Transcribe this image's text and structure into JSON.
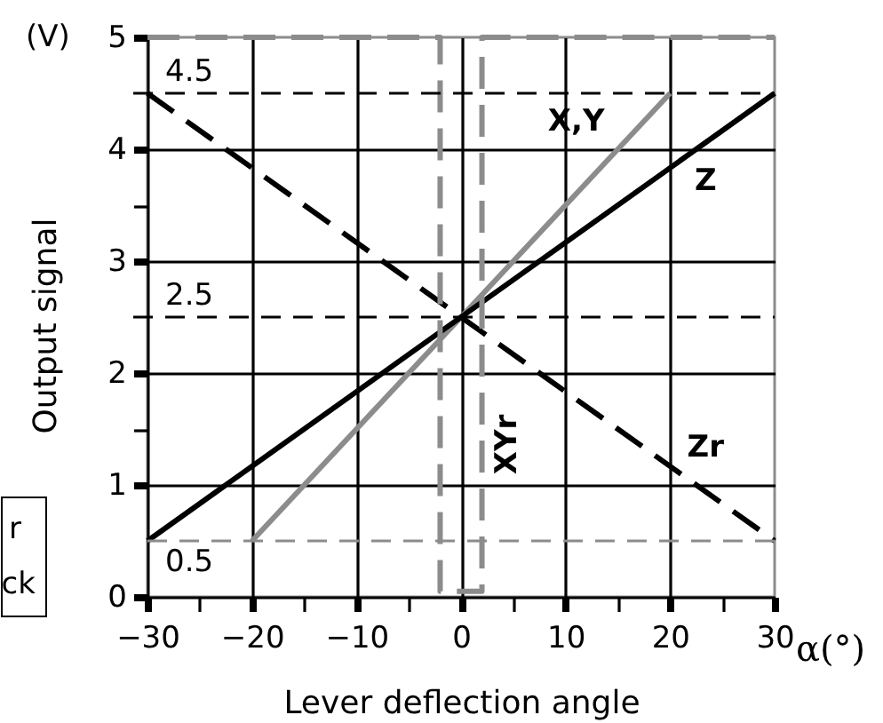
{
  "chart_data": {
    "type": "line",
    "xlabel": "Lever deflection angle",
    "ylabel": "Output signal",
    "annotations": [
      "(V)",
      "α(°)",
      "r",
      "ck"
    ],
    "xlim": [
      -30,
      30
    ],
    "ylim": [
      0,
      5
    ],
    "xticks": [
      -30,
      {
        "value": -25,
        "label": null
      },
      -20,
      {
        "value": -15,
        "label": null
      },
      -10,
      {
        "value": -5,
        "label": null
      },
      0,
      {
        "value": 5,
        "label": null
      },
      10,
      {
        "value": 15,
        "label": null
      },
      20,
      {
        "value": 25,
        "label": null
      },
      30
    ],
    "yticks": [
      0,
      1,
      {
        "value": 1.5,
        "label": null
      },
      2,
      3,
      {
        "value": 3.5,
        "label": null
      },
      4,
      5
    ],
    "grid": true,
    "series": [
      {
        "name": "X,Y",
        "color": "#8c8c8c",
        "x": [
          -20,
          20
        ],
        "values": [
          0.5,
          4.5
        ]
      },
      {
        "name": "Z",
        "color": "#000000",
        "x": [
          -30,
          30
        ],
        "values": [
          0.5,
          4.5
        ]
      },
      {
        "name": "Zr",
        "color": "#000000",
        "line_style": "dashed",
        "x": [
          -30,
          30
        ],
        "values": [
          4.5,
          0.5
        ]
      },
      {
        "name": "XYr",
        "color": "#8c8c8c",
        "line_style": "dashed",
        "x": [
          -30,
          -2,
          -2,
          2,
          2,
          30
        ],
        "values": [
          5,
          5,
          0.05,
          0.05,
          5,
          5
        ]
      }
    ],
    "ref_lines": [
      {
        "axis": "y",
        "value": 4.5,
        "label": "4.5",
        "color": "#000000",
        "line_style": "dashed"
      },
      {
        "axis": "y",
        "value": 2.5,
        "label": "2.5",
        "color": "#000000",
        "line_style": "dashed"
      },
      {
        "axis": "y",
        "value": 0.5,
        "label": "0.5",
        "color": "#8c8c8c",
        "line_style": "dashed"
      }
    ]
  }
}
